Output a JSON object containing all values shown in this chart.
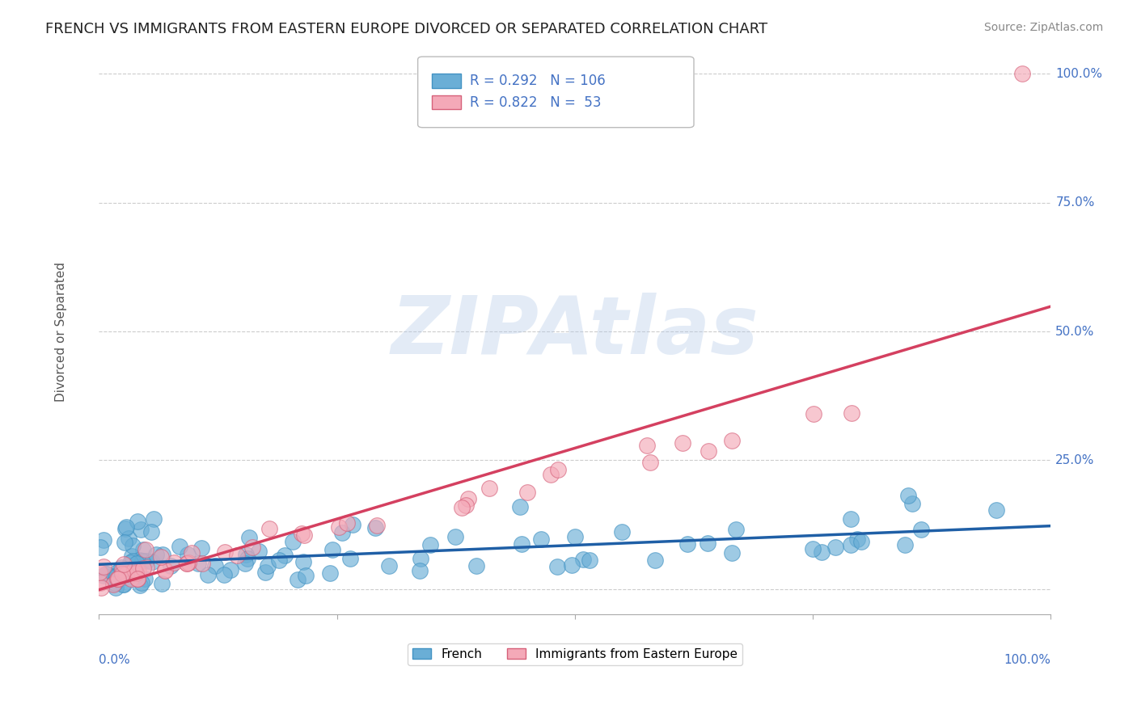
{
  "title": "FRENCH VS IMMIGRANTS FROM EASTERN EUROPE DIVORCED OR SEPARATED CORRELATION CHART",
  "source": "Source: ZipAtlas.com",
  "xlabel": "",
  "ylabel": "Divorced or Separated",
  "xlim": [
    0,
    1
  ],
  "ylim": [
    -0.05,
    1.05
  ],
  "xticks": [
    0,
    0.25,
    0.5,
    0.75,
    1.0
  ],
  "yticks": [
    0,
    0.25,
    0.5,
    0.75,
    1.0
  ],
  "xtick_labels": [
    "0.0%",
    "",
    "",
    "",
    "100.0%"
  ],
  "ytick_labels": [
    "",
    "25.0%",
    "50.0%",
    "75.0%",
    "100.0%"
  ],
  "french_color": "#6aaed6",
  "french_edge_color": "#4393c3",
  "immigrant_color": "#f4a9b8",
  "immigrant_edge_color": "#d6617a",
  "french_R": 0.292,
  "french_N": 106,
  "immigrant_R": 0.822,
  "immigrant_N": 53,
  "watermark_text": "ZIPAtlas",
  "watermark_color": "#b0c8e8",
  "title_fontsize": 13,
  "axis_label_fontsize": 11,
  "tick_label_color": "#4472c4",
  "legend_text_color": "#4472c4",
  "grid_color": "#cccccc",
  "background_color": "#ffffff",
  "french_line_color": "#1f5fa6",
  "immigrant_line_color": "#d44060",
  "french_seed": 42,
  "immigrant_seed": 99
}
